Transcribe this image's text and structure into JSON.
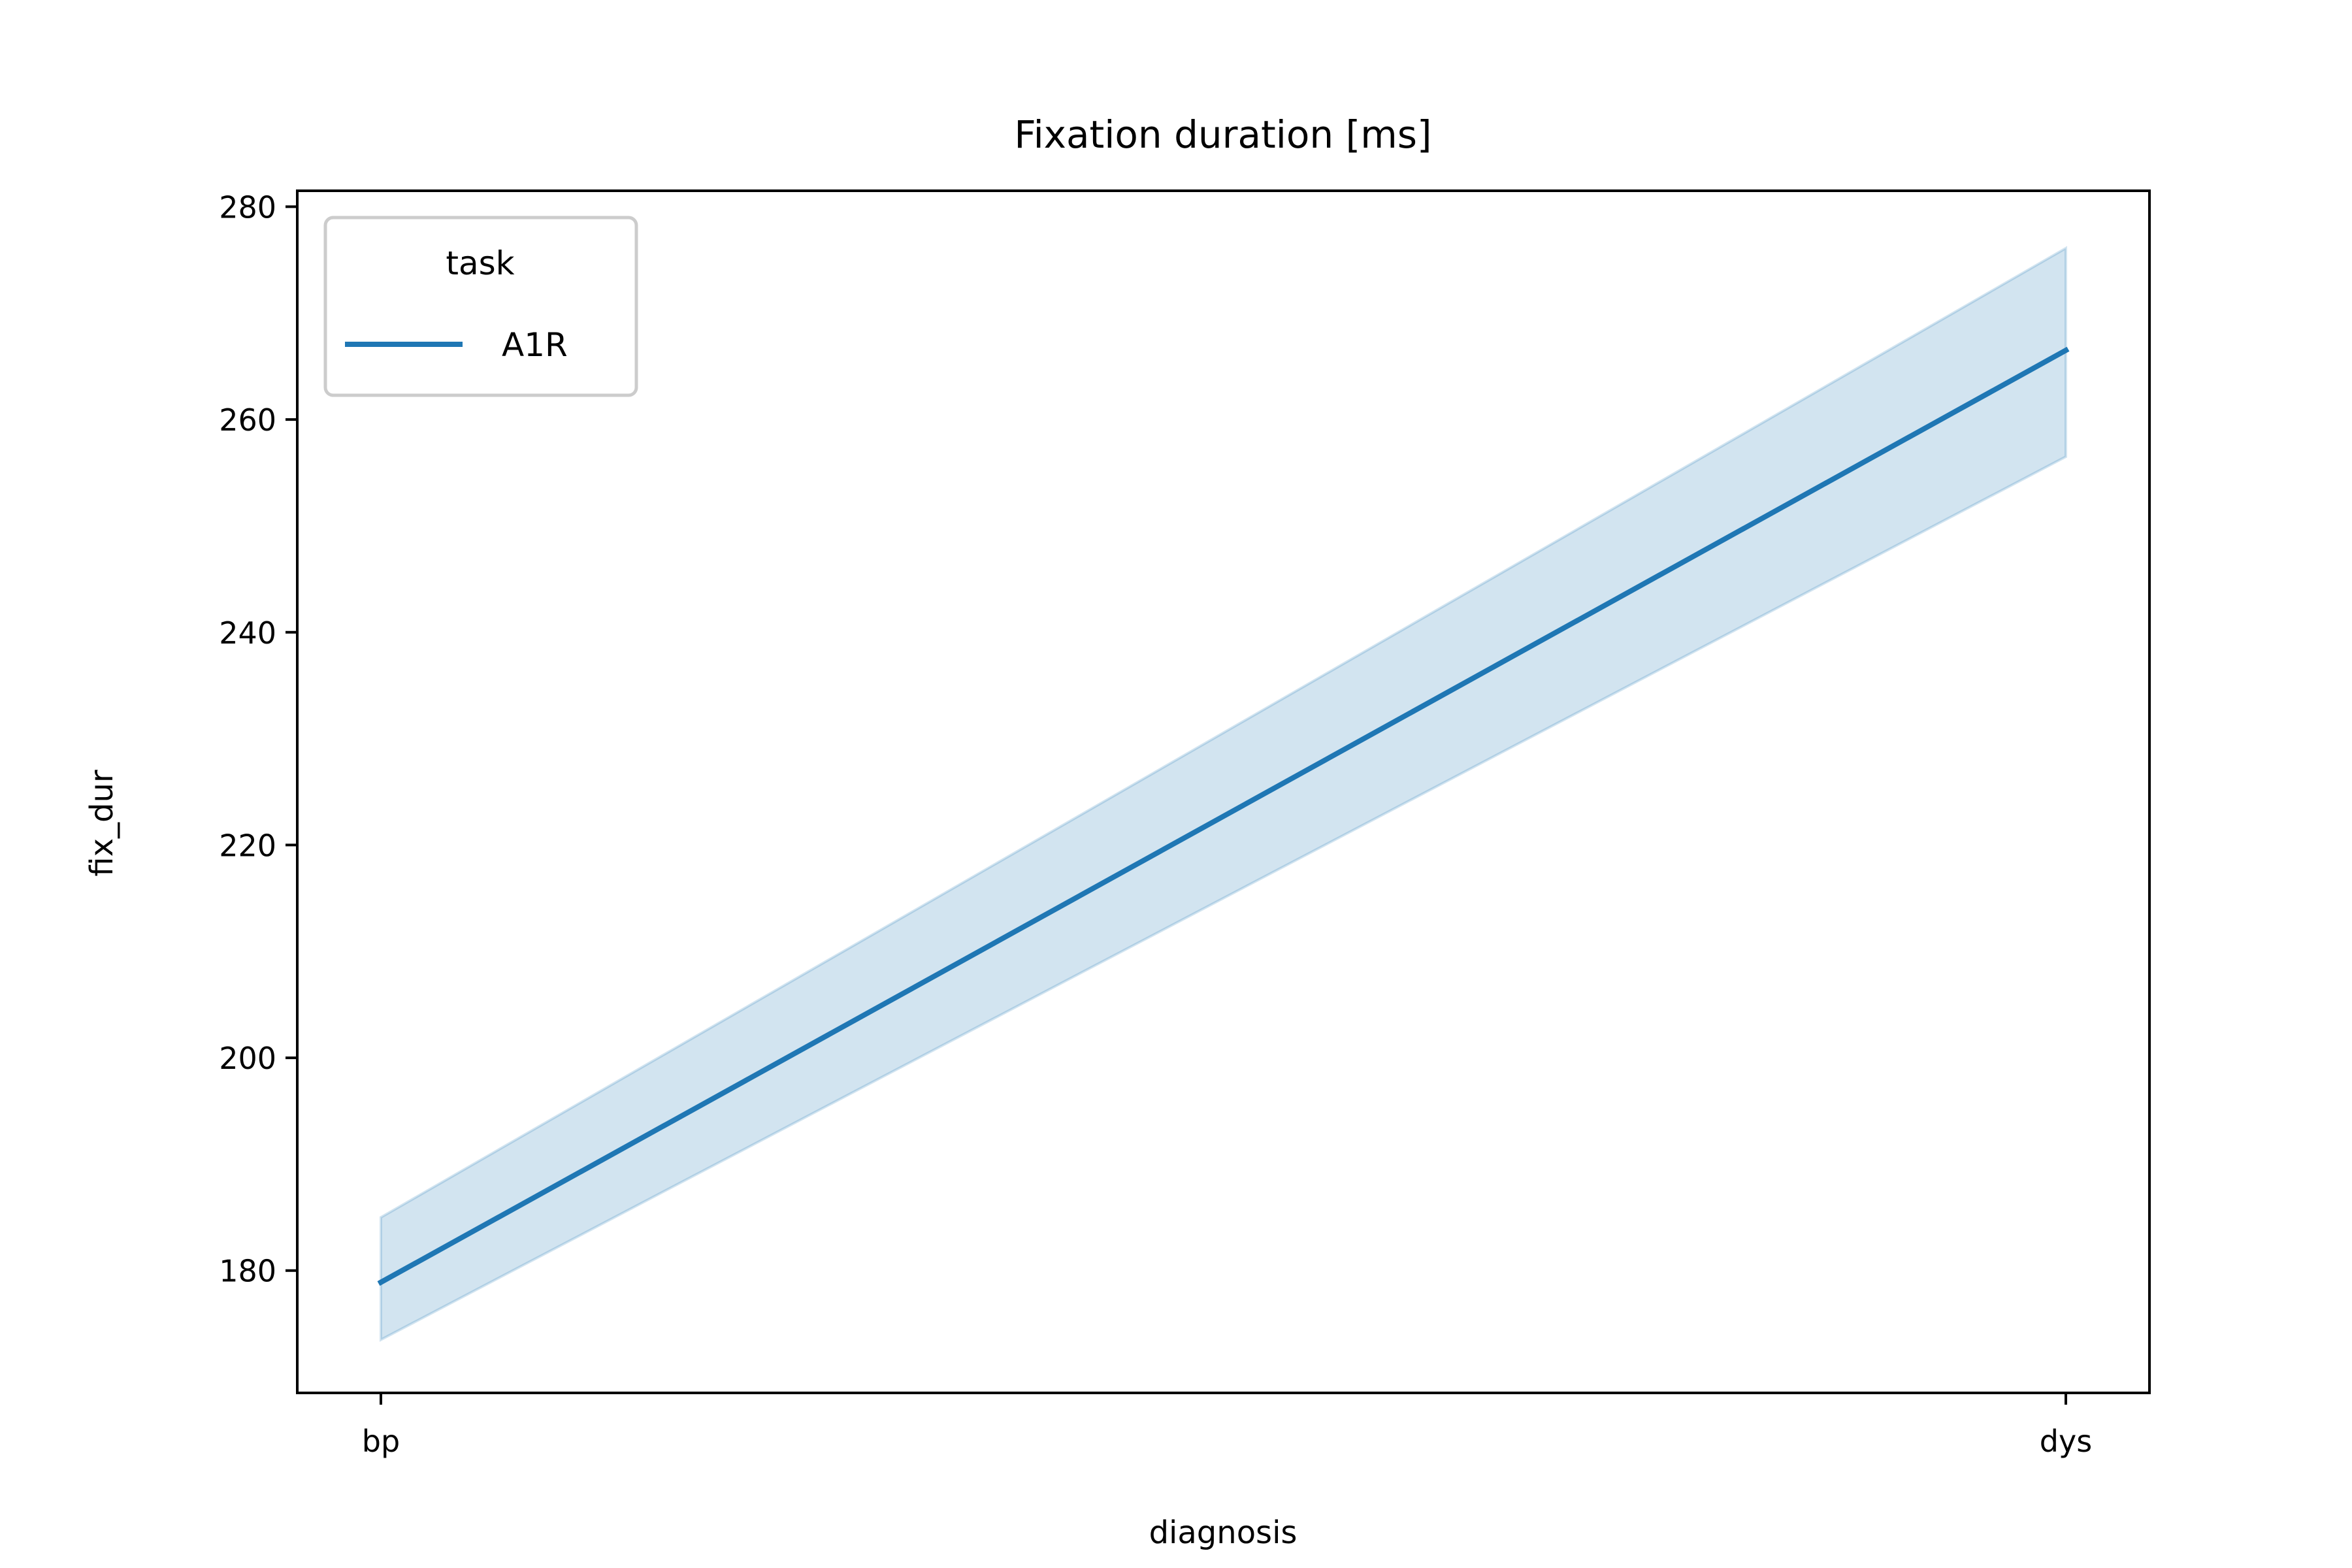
{
  "chart_data": {
    "type": "line",
    "title": "Fixation duration [ms]",
    "xlabel": "diagnosis",
    "ylabel": "fix_dur",
    "categories": [
      "bp",
      "dys"
    ],
    "ylim": [
      168.5,
      281.5
    ],
    "yticks": [
      180,
      200,
      220,
      240,
      260,
      280
    ],
    "grid": false,
    "legend": {
      "title": "task",
      "placement": "top-left"
    },
    "series": [
      {
        "name": "A1R",
        "color": "#1f77b4",
        "values": [
          178.9,
          266.5
        ],
        "ci_lower": [
          173.5,
          256.5
        ],
        "ci_upper": [
          185.0,
          276.1
        ]
      }
    ]
  }
}
